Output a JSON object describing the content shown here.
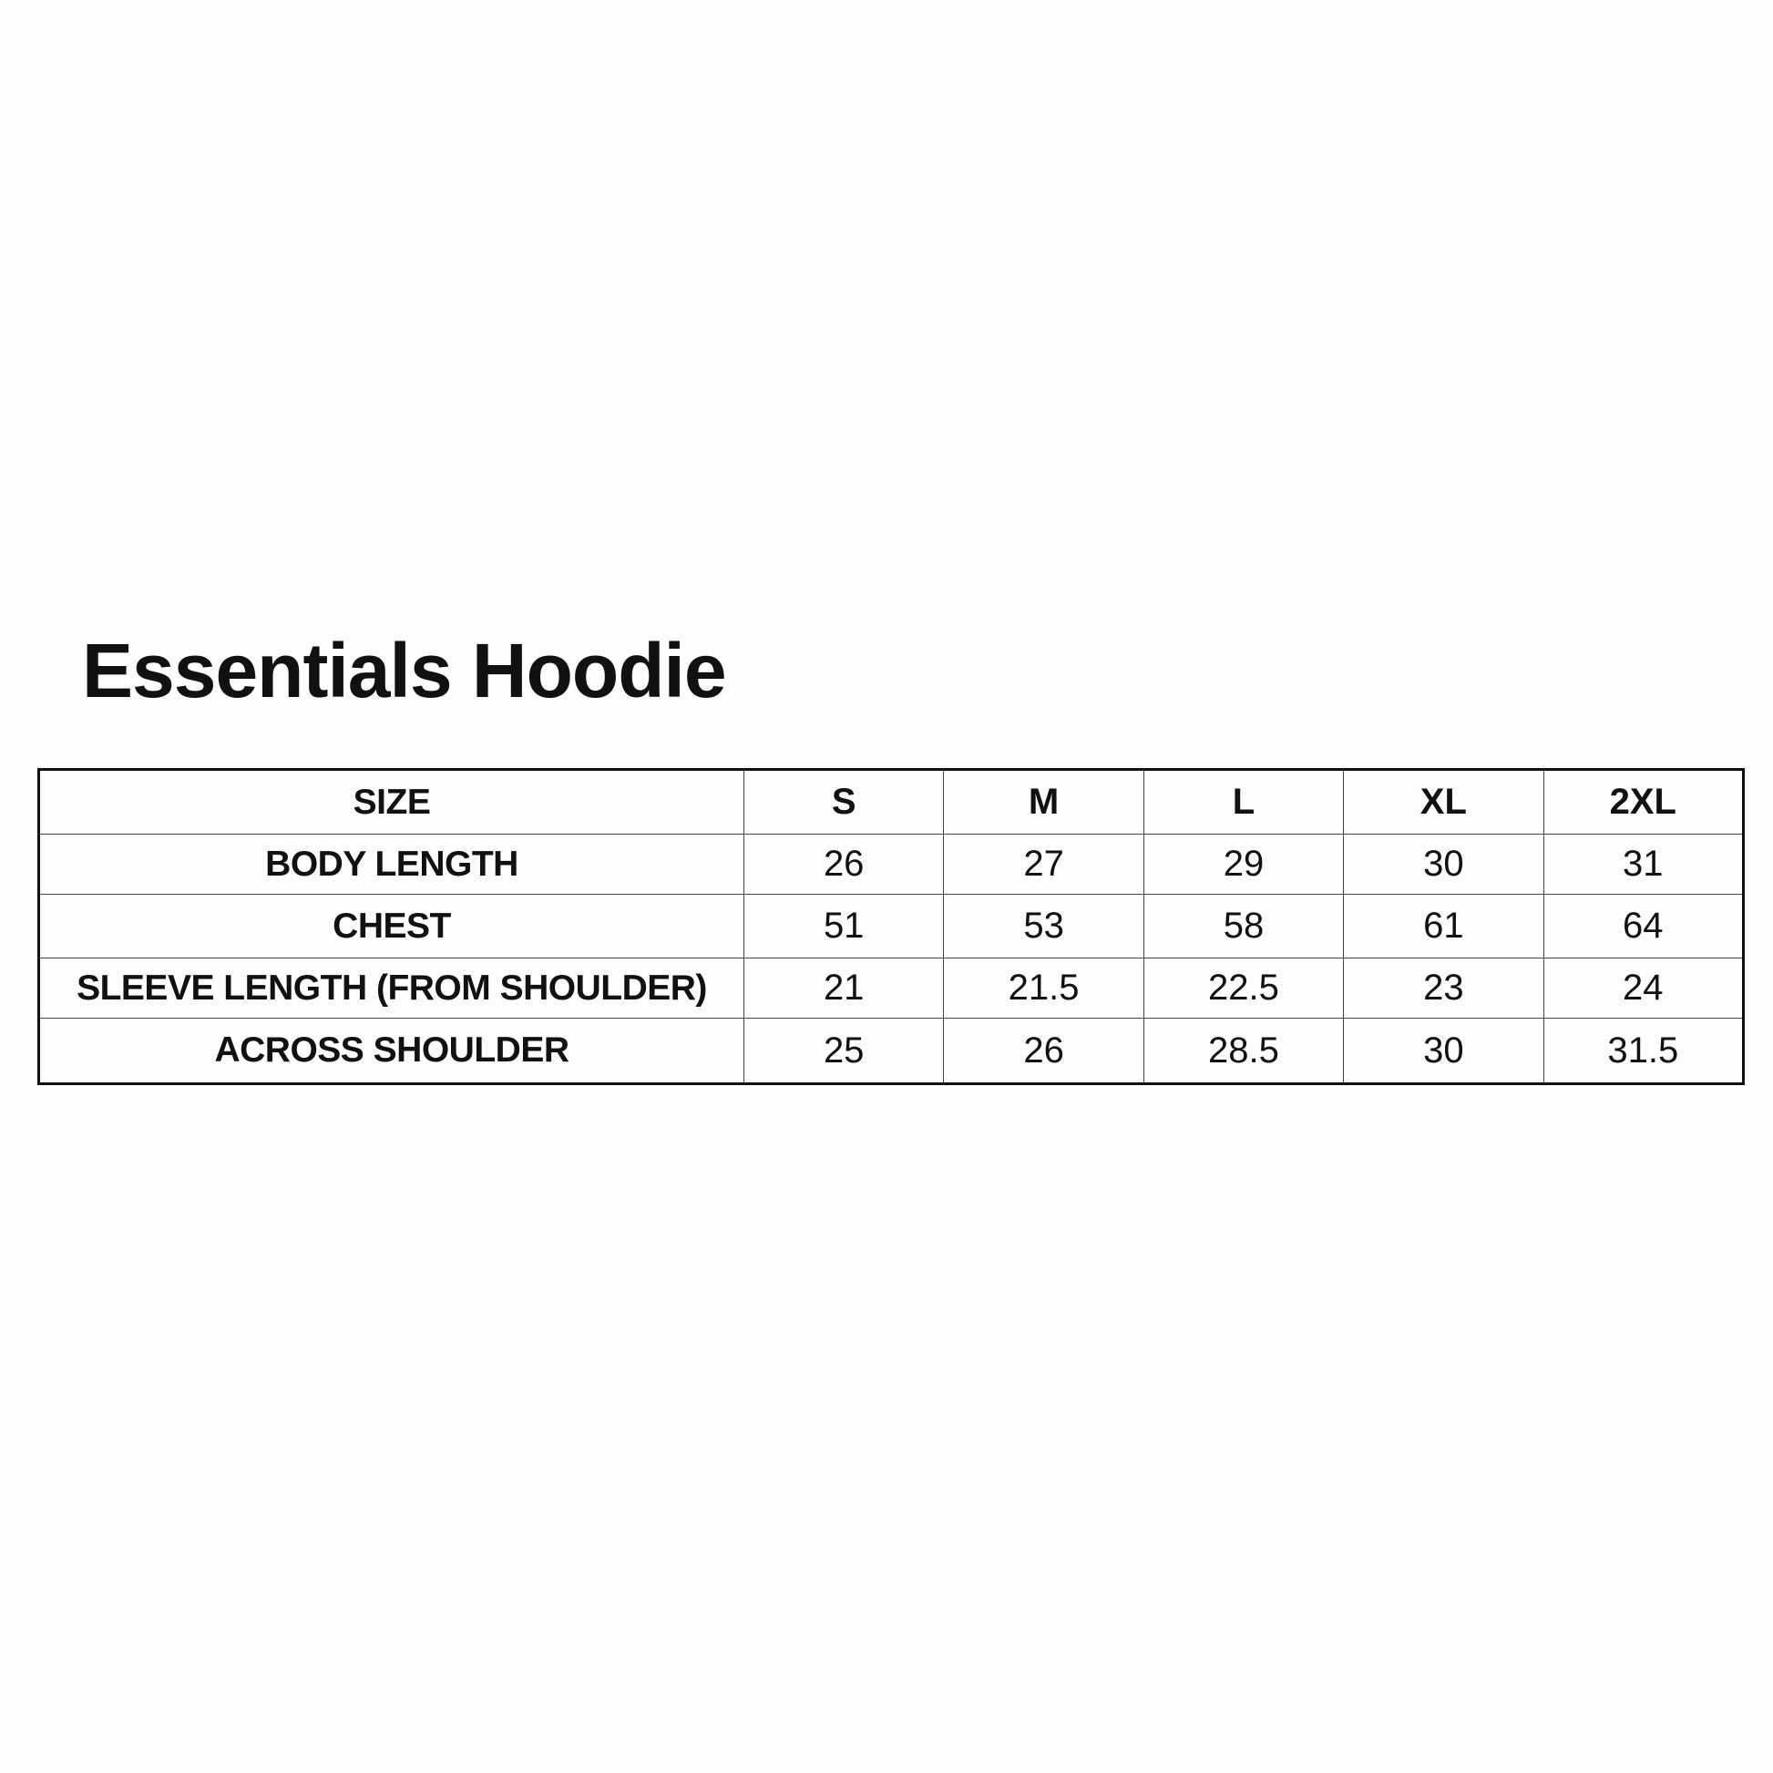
{
  "title": "Essentials Hoodie",
  "table": {
    "header": [
      "SIZE",
      "S",
      "M",
      "L",
      "XL",
      "2XL"
    ],
    "rows": [
      {
        "label": "BODY LENGTH",
        "values": [
          "26",
          "27",
          "29",
          "30",
          "31"
        ]
      },
      {
        "label": "CHEST",
        "values": [
          "51",
          "53",
          "58",
          "61",
          "64"
        ]
      },
      {
        "label": "SLEEVE LENGTH (FROM SHOULDER)",
        "values": [
          "21",
          "21.5",
          "22.5",
          "23",
          "24"
        ]
      },
      {
        "label": "ACROSS SHOULDER",
        "values": [
          "25",
          "26",
          "28.5",
          "30",
          "31.5"
        ]
      }
    ]
  }
}
